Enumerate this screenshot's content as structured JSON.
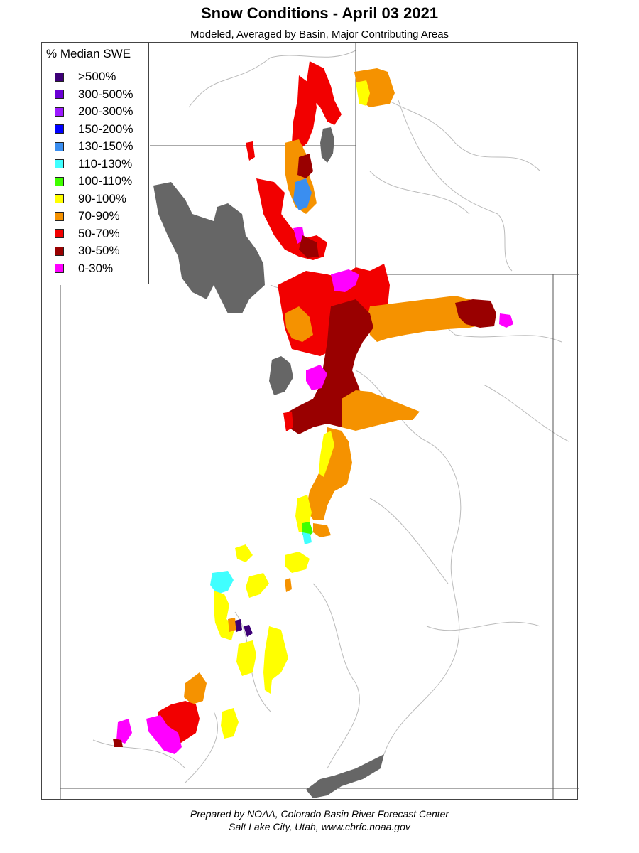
{
  "title": "Snow Conditions - April 03 2021",
  "subtitle": "Modeled, Averaged by Basin, Major Contributing Areas",
  "legend": {
    "title": "% Median SWE",
    "items": [
      {
        "label": ">500%",
        "color": "#3d0077"
      },
      {
        "label": "300-500%",
        "color": "#6a00d4"
      },
      {
        "label": "200-300%",
        "color": "#9b19ff"
      },
      {
        "label": "150-200%",
        "color": "#0000ff"
      },
      {
        "label": "130-150%",
        "color": "#3a8ef0"
      },
      {
        "label": "110-130%",
        "color": "#40ffff"
      },
      {
        "label": "100-110%",
        "color": "#40ff00"
      },
      {
        "label": "90-100%",
        "color": "#ffff00"
      },
      {
        "label": "70-90%",
        "color": "#f59200"
      },
      {
        "label": "50-70%",
        "color": "#f20000"
      },
      {
        "label": "30-50%",
        "color": "#990000"
      },
      {
        "label": "0-30%",
        "color": "#ff00ff"
      }
    ]
  },
  "colors": {
    "water": "#666666",
    "boundary": "#555555",
    "river": "#bbbbbb"
  },
  "footer": {
    "line1": "Prepared by NOAA, Colorado Basin River Forecast Center",
    "line2": "Salt Lake City, Utah, www.cbrfc.noaa.gov"
  }
}
